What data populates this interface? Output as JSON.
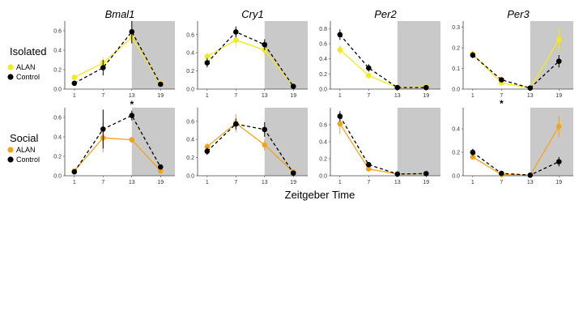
{
  "xlabel": "Zeitgeber Time",
  "colors": {
    "alan_isolated": "#f5e81c",
    "alan_social": "#f2a31a",
    "control": "#000000",
    "dark_phase": "#c9c9c9"
  },
  "rows": [
    {
      "label": "Isolated",
      "legend": [
        "ALAN",
        "Control"
      ],
      "alan_color_key": "alan_isolated"
    },
    {
      "label": "Social",
      "legend": [
        "ALAN",
        "Control"
      ],
      "alan_color_key": "alan_social"
    }
  ],
  "chart_data": [
    {
      "type": "line",
      "row": "Isolated",
      "title": "Bmal1",
      "x": [
        1,
        7,
        13,
        19
      ],
      "xticks": [
        "1",
        "7",
        "13",
        "19"
      ],
      "ylim": [
        0,
        0.7
      ],
      "yticks": [
        "0.0",
        "0.2",
        "0.4",
        "0.6"
      ],
      "ytick_values": [
        0,
        0.2,
        0.4,
        0.6
      ],
      "dark_phase": [
        13,
        22
      ],
      "series": [
        {
          "name": "ALAN",
          "values": [
            0.12,
            0.27,
            0.53,
            0.06
          ],
          "err": [
            0.03,
            0.06,
            0.06,
            0.02
          ]
        },
        {
          "name": "Control",
          "values": [
            0.06,
            0.22,
            0.59,
            0.05
          ],
          "err": [
            0.02,
            0.08,
            0.12,
            0.02
          ]
        }
      ],
      "significant": []
    },
    {
      "type": "line",
      "row": "Isolated",
      "title": "Cry1",
      "x": [
        1,
        7,
        13,
        19
      ],
      "xticks": [
        "1",
        "7",
        "13",
        "19"
      ],
      "ylim": [
        0,
        0.75
      ],
      "yticks": [
        "0.0",
        "0.2",
        "0.4",
        "0.6"
      ],
      "ytick_values": [
        0,
        0.2,
        0.4,
        0.6
      ],
      "dark_phase": [
        13,
        22
      ],
      "series": [
        {
          "name": "ALAN",
          "values": [
            0.36,
            0.54,
            0.43,
            0.03
          ],
          "err": [
            0.04,
            0.08,
            0.05,
            0.01
          ]
        },
        {
          "name": "Control",
          "values": [
            0.29,
            0.63,
            0.49,
            0.03
          ],
          "err": [
            0.05,
            0.06,
            0.06,
            0.01
          ]
        }
      ],
      "significant": []
    },
    {
      "type": "line",
      "row": "Isolated",
      "title": "Per2",
      "x": [
        1,
        7,
        13,
        19
      ],
      "xticks": [
        "1",
        "7",
        "13",
        "19"
      ],
      "ylim": [
        0,
        0.9
      ],
      "yticks": [
        "0.0",
        "0.2",
        "0.4",
        "0.6",
        "0.8"
      ],
      "ytick_values": [
        0,
        0.2,
        0.4,
        0.6,
        0.8
      ],
      "dark_phase": [
        13,
        22
      ],
      "series": [
        {
          "name": "ALAN",
          "values": [
            0.52,
            0.18,
            0.02,
            0.03
          ],
          "err": [
            0.06,
            0.04,
            0.01,
            0.01
          ]
        },
        {
          "name": "Control",
          "values": [
            0.72,
            0.28,
            0.02,
            0.02
          ],
          "err": [
            0.07,
            0.05,
            0.01,
            0.01
          ]
        }
      ],
      "significant": []
    },
    {
      "type": "line",
      "row": "Isolated",
      "title": "Per3",
      "x": [
        1,
        7,
        13,
        19
      ],
      "xticks": [
        "1",
        "7",
        "13",
        "19"
      ],
      "ylim": [
        0,
        0.33
      ],
      "yticks": [
        "0.0",
        "0.1",
        "0.2",
        "0.3"
      ],
      "ytick_values": [
        0,
        0.1,
        0.2,
        0.3
      ],
      "dark_phase": [
        13,
        22
      ],
      "series": [
        {
          "name": "ALAN",
          "values": [
            0.17,
            0.03,
            0.005,
            0.24
          ],
          "err": [
            0.02,
            0.01,
            0.005,
            0.05
          ]
        },
        {
          "name": "Control",
          "values": [
            0.165,
            0.045,
            0.005,
            0.135
          ],
          "err": [
            0.015,
            0.01,
            0.005,
            0.03
          ]
        }
      ],
      "significant": [
        7
      ]
    },
    {
      "type": "line",
      "row": "Social",
      "title": "",
      "x": [
        1,
        7,
        13,
        19
      ],
      "xticks": [
        "1",
        "7",
        "13",
        "19"
      ],
      "ylim": [
        0,
        0.7
      ],
      "yticks": [
        "0.0",
        "0.2",
        "0.4",
        "0.6"
      ],
      "ytick_values": [
        0,
        0.2,
        0.4,
        0.6
      ],
      "dark_phase": [
        13,
        22
      ],
      "series": [
        {
          "name": "ALAN",
          "values": [
            0.05,
            0.39,
            0.37,
            0.05
          ],
          "err": [
            0.02,
            0.15,
            0.03,
            0.02
          ]
        },
        {
          "name": "Control",
          "values": [
            0.04,
            0.48,
            0.62,
            0.09
          ],
          "err": [
            0.02,
            0.2,
            0.05,
            0.02
          ]
        }
      ],
      "significant": [
        13
      ]
    },
    {
      "type": "line",
      "row": "Social",
      "title": "",
      "x": [
        1,
        7,
        13,
        19
      ],
      "xticks": [
        "1",
        "7",
        "13",
        "19"
      ],
      "ylim": [
        0,
        0.75
      ],
      "yticks": [
        "0.0",
        "0.2",
        "0.4",
        "0.6"
      ],
      "ytick_values": [
        0,
        0.2,
        0.4,
        0.6
      ],
      "dark_phase": [
        13,
        22
      ],
      "series": [
        {
          "name": "ALAN",
          "values": [
            0.32,
            0.58,
            0.34,
            0.04
          ],
          "err": [
            0.04,
            0.1,
            0.06,
            0.01
          ]
        },
        {
          "name": "Control",
          "values": [
            0.27,
            0.57,
            0.51,
            0.03
          ],
          "err": [
            0.04,
            0.06,
            0.08,
            0.01
          ]
        }
      ],
      "significant": []
    },
    {
      "type": "line",
      "row": "Social",
      "title": "",
      "x": [
        1,
        7,
        13,
        19
      ],
      "xticks": [
        "1",
        "7",
        "13",
        "19"
      ],
      "ylim": [
        0,
        0.8
      ],
      "yticks": [
        "0.0",
        "0.2",
        "0.4",
        "0.6"
      ],
      "ytick_values": [
        0,
        0.2,
        0.4,
        0.6
      ],
      "dark_phase": [
        13,
        22
      ],
      "series": [
        {
          "name": "ALAN",
          "values": [
            0.61,
            0.08,
            0.02,
            0.025
          ],
          "err": [
            0.12,
            0.02,
            0.01,
            0.01
          ]
        },
        {
          "name": "Control",
          "values": [
            0.7,
            0.13,
            0.02,
            0.025
          ],
          "err": [
            0.06,
            0.03,
            0.01,
            0.01
          ]
        }
      ],
      "significant": []
    },
    {
      "type": "line",
      "row": "Social",
      "title": "",
      "x": [
        1,
        7,
        13,
        19
      ],
      "xticks": [
        "1",
        "7",
        "13",
        "19"
      ],
      "ylim": [
        0,
        0.58
      ],
      "yticks": [
        "0.0",
        "0.2",
        "0.4"
      ],
      "ytick_values": [
        0,
        0.2,
        0.4
      ],
      "dark_phase": [
        13,
        22
      ],
      "series": [
        {
          "name": "ALAN",
          "values": [
            0.16,
            0.01,
            0.005,
            0.42
          ],
          "err": [
            0.02,
            0.01,
            0.005,
            0.09
          ]
        },
        {
          "name": "Control",
          "values": [
            0.2,
            0.02,
            0.005,
            0.12
          ],
          "err": [
            0.03,
            0.01,
            0.005,
            0.04
          ]
        }
      ],
      "significant": []
    }
  ]
}
